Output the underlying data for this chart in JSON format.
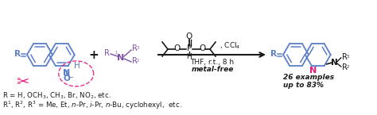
{
  "bg_color": "#ffffff",
  "blue_color": "#5B7EC9",
  "pink_color": "#E8197A",
  "dark_color": "#1a1a1a",
  "purple_color": "#7B52A6",
  "fig_width": 4.74,
  "fig_height": 1.45,
  "caption_line1": "R = H, OCH$_3$, CH$_3$, Br, NO$_2$, etc.",
  "caption_line2": "R$^1$, R$^2$, R$^3$ = Me, Et, $n$-Pr, $i$-Pr, $n$-Bu, cyclohexyl,  etc.",
  "condition_line1": "THF, r.t., 8 h",
  "condition_line2": "metal-free",
  "yield_line1": "26 examples",
  "yield_line2": "up to 83%"
}
